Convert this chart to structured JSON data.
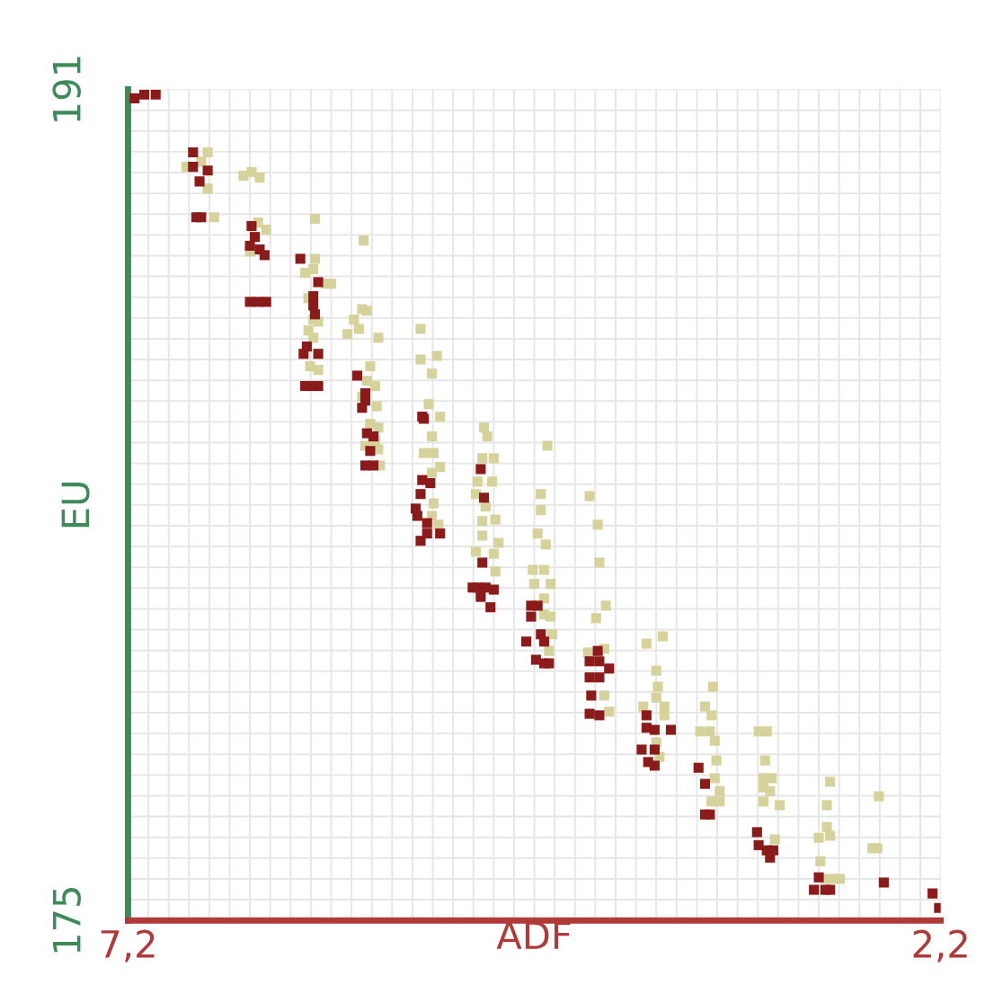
{
  "chart_data": {
    "type": "scatter",
    "xlabel": "ADF",
    "ylabel": "EU",
    "xlim": [
      7.2,
      2.2
    ],
    "ylim": [
      175,
      191
    ],
    "xticks": [
      {
        "value": 7.2,
        "label": "7,2"
      },
      {
        "value": 2.2,
        "label": "2,2"
      }
    ],
    "yticks": [
      175,
      191
    ],
    "grid": true,
    "marker": "square",
    "series": [
      {
        "color": "#d6d29c",
        "x": [
          6.71,
          6.75,
          6.84,
          6.71,
          6.67,
          6.49,
          6.44,
          6.39,
          6.45,
          6.35,
          6.4,
          6.06,
          6.11,
          5.98,
          5.95,
          6.09,
          6.06,
          6.03,
          6.06,
          6.08,
          6.03,
          6.09,
          6.05,
          5.81,
          5.76,
          5.73,
          5.71,
          5.73,
          5.68,
          5.76,
          5.67,
          5.71,
          5.66,
          5.68,
          5.74,
          5.85,
          5.78,
          5.66,
          5.75,
          6.05,
          5.4,
          5.3,
          5.4,
          5.33,
          5.28,
          5.35,
          5.33,
          5.38,
          5.32,
          5.33,
          5.32,
          5.33,
          5.29,
          5.28,
          5.66,
          5.65,
          5.01,
          4.99,
          5.02,
          4.95,
          4.96,
          5.05,
          5.06,
          5.0,
          5.02,
          4.94,
          5.02,
          4.92,
          5.06,
          4.95,
          4.94,
          4.62,
          4.66,
          4.66,
          4.68,
          4.63,
          4.71,
          4.64,
          4.7,
          4.6,
          4.64,
          4.64,
          4.6,
          4.59,
          4.61,
          4.36,
          4.31,
          4.3,
          4.26,
          4.32,
          4.37,
          4.27,
          4.27,
          4.24,
          4.01,
          3.91,
          3.95,
          3.94,
          3.95,
          3.9,
          4.03,
          3.9,
          3.95,
          3.93,
          3.6,
          3.65,
          3.61,
          3.68,
          3.62,
          3.59,
          3.58,
          3.59,
          3.56,
          3.61,
          3.56,
          3.32,
          3.27,
          3.28,
          3.29,
          3.24,
          3.29,
          3.25,
          3.29,
          3.19,
          3.22,
          2.88,
          2.9,
          2.9,
          2.95,
          2.88,
          2.94,
          2.91,
          2.86,
          2.82,
          2.58,
          2.62,
          2.59
        ],
        "values": [
          189.79,
          189.61,
          189.51,
          189.09,
          188.54,
          189.34,
          189.41,
          189.3,
          187.88,
          188.3,
          188.44,
          187.54,
          187.47,
          187.26,
          187.26,
          186.98,
          186.57,
          186.53,
          186.22,
          185.67,
          185.6,
          186.36,
          187.74,
          186.57,
          186.77,
          186.74,
          185.67,
          185.39,
          185.29,
          185.08,
          184.9,
          184.56,
          184.49,
          184.25,
          184.14,
          186.29,
          186.39,
          186.22,
          188.09,
          188.51,
          186.39,
          185.87,
          185.8,
          185.53,
          184.7,
          184.94,
          184.32,
          184.0,
          184.0,
          183.62,
          183.03,
          182.79,
          182.62,
          183.73,
          184.07,
          183.76,
          184.49,
          184.32,
          183.9,
          183.9,
          183.45,
          183.45,
          183.21,
          182.97,
          182.69,
          182.72,
          182.41,
          182.27,
          182.1,
          182.06,
          181.72,
          184.14,
          183.21,
          182.9,
          182.45,
          182.24,
          181.75,
          181.75,
          181.48,
          181.48,
          181.2,
          180.89,
          180.85,
          180.51,
          180.19,
          183.17,
          182.62,
          181.89,
          181.06,
          180.82,
          180.16,
          180.23,
          179.33,
          179.02,
          180.33,
          180.47,
          179.81,
          179.5,
          179.29,
          179.12,
          179.12,
          178.95,
          178.43,
          178.15,
          179.5,
          179.12,
          178.95,
          178.64,
          178.64,
          178.46,
          178.08,
          177.74,
          177.49,
          177.29,
          177.29,
          178.64,
          178.64,
          178.08,
          177.74,
          177.74,
          177.56,
          177.49,
          177.29,
          177.22,
          176.56,
          177.67,
          177.22,
          176.8,
          176.59,
          176.63,
          176.14,
          175.8,
          175.8,
          175.8,
          177.39,
          176.39,
          176.39
        ]
      },
      {
        "color": "#8b1a1a",
        "x": [
          7.16,
          7.1,
          7.03,
          6.8,
          6.8,
          6.71,
          6.76,
          6.78,
          6.75,
          6.44,
          6.42,
          6.45,
          6.39,
          6.36,
          6.45,
          6.4,
          6.35,
          6.14,
          6.03,
          6.06,
          6.06,
          6.05,
          6.1,
          6.12,
          6.03,
          6.11,
          6.06,
          6.03,
          5.79,
          5.74,
          5.74,
          5.76,
          5.73,
          5.69,
          5.71,
          5.74,
          5.69,
          5.39,
          5.38,
          5.39,
          5.34,
          5.4,
          5.43,
          5.42,
          5.36,
          5.4,
          5.36,
          5.28,
          5.03,
          5.01,
          5.02,
          5.08,
          5.05,
          5.0,
          4.95,
          5.03,
          4.97,
          4.72,
          4.68,
          4.72,
          4.75,
          4.66,
          4.64,
          4.69,
          4.64,
          4.61,
          4.31,
          4.36,
          4.3,
          4.24,
          4.36,
          4.3,
          4.35,
          4.36,
          4.3,
          4.01,
          4.01,
          3.96,
          3.86,
          4.04,
          3.96,
          4.0,
          3.96,
          3.69,
          3.65,
          3.65,
          3.62,
          3.33,
          3.32,
          3.27,
          3.23,
          3.25,
          2.95,
          2.98,
          2.91,
          2.88,
          2.55,
          2.25,
          2.21
        ],
        "values": [
          190.83,
          190.9,
          190.9,
          189.79,
          189.51,
          189.44,
          189.23,
          188.54,
          188.54,
          188.37,
          188.16,
          187.99,
          187.92,
          187.81,
          186.91,
          186.91,
          186.91,
          187.74,
          187.29,
          187.02,
          186.84,
          186.67,
          186.05,
          185.91,
          185.91,
          185.29,
          185.29,
          185.29,
          185.49,
          185.15,
          185.01,
          184.87,
          184.38,
          184.32,
          184.04,
          183.76,
          183.76,
          184.7,
          184.66,
          183.48,
          183.42,
          183.21,
          182.93,
          182.79,
          182.65,
          182.31,
          182.45,
          182.45,
          183.69,
          183.14,
          181.89,
          181.41,
          181.41,
          181.41,
          181.37,
          181.23,
          181.03,
          181.06,
          181.06,
          180.85,
          180.37,
          180.51,
          180.37,
          180.02,
          179.95,
          179.95,
          180.19,
          179.99,
          179.99,
          179.85,
          179.68,
          179.68,
          179.33,
          178.98,
          178.95,
          178.95,
          178.71,
          178.67,
          178.67,
          178.29,
          178.29,
          178.05,
          177.98,
          177.94,
          177.63,
          177.04,
          177.04,
          176.7,
          176.45,
          176.35,
          176.35,
          176.21,
          175.83,
          175.59,
          175.59,
          175.59,
          175.73,
          175.52,
          175.24
        ]
      }
    ]
  }
}
